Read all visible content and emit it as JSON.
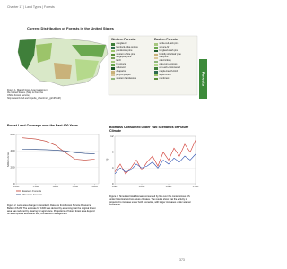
{
  "header": {
    "running_head": "Chapter 17 | Land Types | Forests",
    "page_number": "373",
    "side_tab": "Forests"
  },
  "map_figure": {
    "title": "Current Distribution of Forests in the United States",
    "legend": {
      "western_title": "Western Forests:",
      "western": [
        "douglas-fir",
        "hemlock-sitka spruce",
        "ponderosa pine",
        "western white pine",
        "lodgepole pine",
        "larch",
        "fir-spruce",
        "redwood",
        "chaparral",
        "pinyon-juniper",
        "western hardwoods"
      ],
      "eastern_title": "Eastern Forests:",
      "eastern": [
        "white-red-jack pine",
        "spruce-fir",
        "longleaf-slash pine",
        "loblolly-shortleaf pine",
        "oak-pine",
        "oak-hickory",
        "oak-gum-cypress",
        "elm-ash-cottonwood",
        "maple-beech-birch",
        "aspen-birch",
        "nonforest"
      ]
    },
    "caption": "Figure 1. Map of forest-type locations in the United States. (Map is from the USDA Forest Service; http://www.fs.fed.us/rm/pubs_other/rmrs_gtr135.pdf)"
  },
  "figures": [
    {
      "type": "line",
      "title": "Forest Land Coverage over the Past 400 Years",
      "y_label": "Million Acres",
      "x": [
        1630,
        1700,
        1750,
        1800,
        1850,
        1900,
        1950,
        2000
      ],
      "series": [
        {
          "name": "Eastern Forests",
          "color": "#c0392b",
          "values": [
            560,
            545,
            520,
            470,
            380,
            300,
            290,
            300
          ]
        },
        {
          "name": "Western Forests",
          "color": "#1f3f7a",
          "values": [
            420,
            418,
            415,
            410,
            400,
            380,
            370,
            365
          ]
        }
      ],
      "xlim": [
        1600,
        2020
      ],
      "xticks": [
        1600,
        1700,
        1800,
        1900,
        2000
      ],
      "ylim": [
        0,
        600
      ],
      "yticks": [
        0,
        200,
        400,
        600
      ],
      "caption": "Figure 2. Land area change in forestland. Data are from Forest Service Resource Bulletin FS-80. The estimate for 1630 was derived by assuming that the original forest area was reduced by clearing for agriculture. Projections of future forest area depend on assumptions about land use, climate and management."
    },
    {
      "type": "line",
      "title": "Biomass Consumed under Two Scenarios of Future Climate",
      "y_label": "Tg",
      "x": [
        1950,
        1960,
        1970,
        1980,
        1990,
        2000,
        2010,
        2020,
        2030,
        2040,
        2050,
        2060,
        2070,
        2080,
        2090,
        2100
      ],
      "series": [
        {
          "color": "#d0342c",
          "values": [
            3,
            5,
            2.5,
            4,
            6,
            3.5,
            5.5,
            7,
            4.5,
            8,
            6,
            9,
            7,
            10,
            8,
            11
          ]
        },
        {
          "color": "#2c4fb0",
          "values": [
            2.5,
            4,
            3,
            3.5,
            5,
            4,
            4.5,
            5.5,
            4,
            6,
            5,
            6.5,
            5.5,
            7,
            6,
            7.5
          ]
        }
      ],
      "xlim": [
        1950,
        2100
      ],
      "xticks": [
        1950,
        2000,
        2050,
        2100
      ],
      "ylim": [
        0,
        12
      ],
      "yticks": [
        0,
        4,
        8,
        12
      ],
      "caption": "Figure 3. Simulated total biomass consumed by fire over the conterminous US under historical and two future climates. The results show that fire activity is projected to increase under both scenarios, with larger increases under warmer conditions."
    }
  ]
}
